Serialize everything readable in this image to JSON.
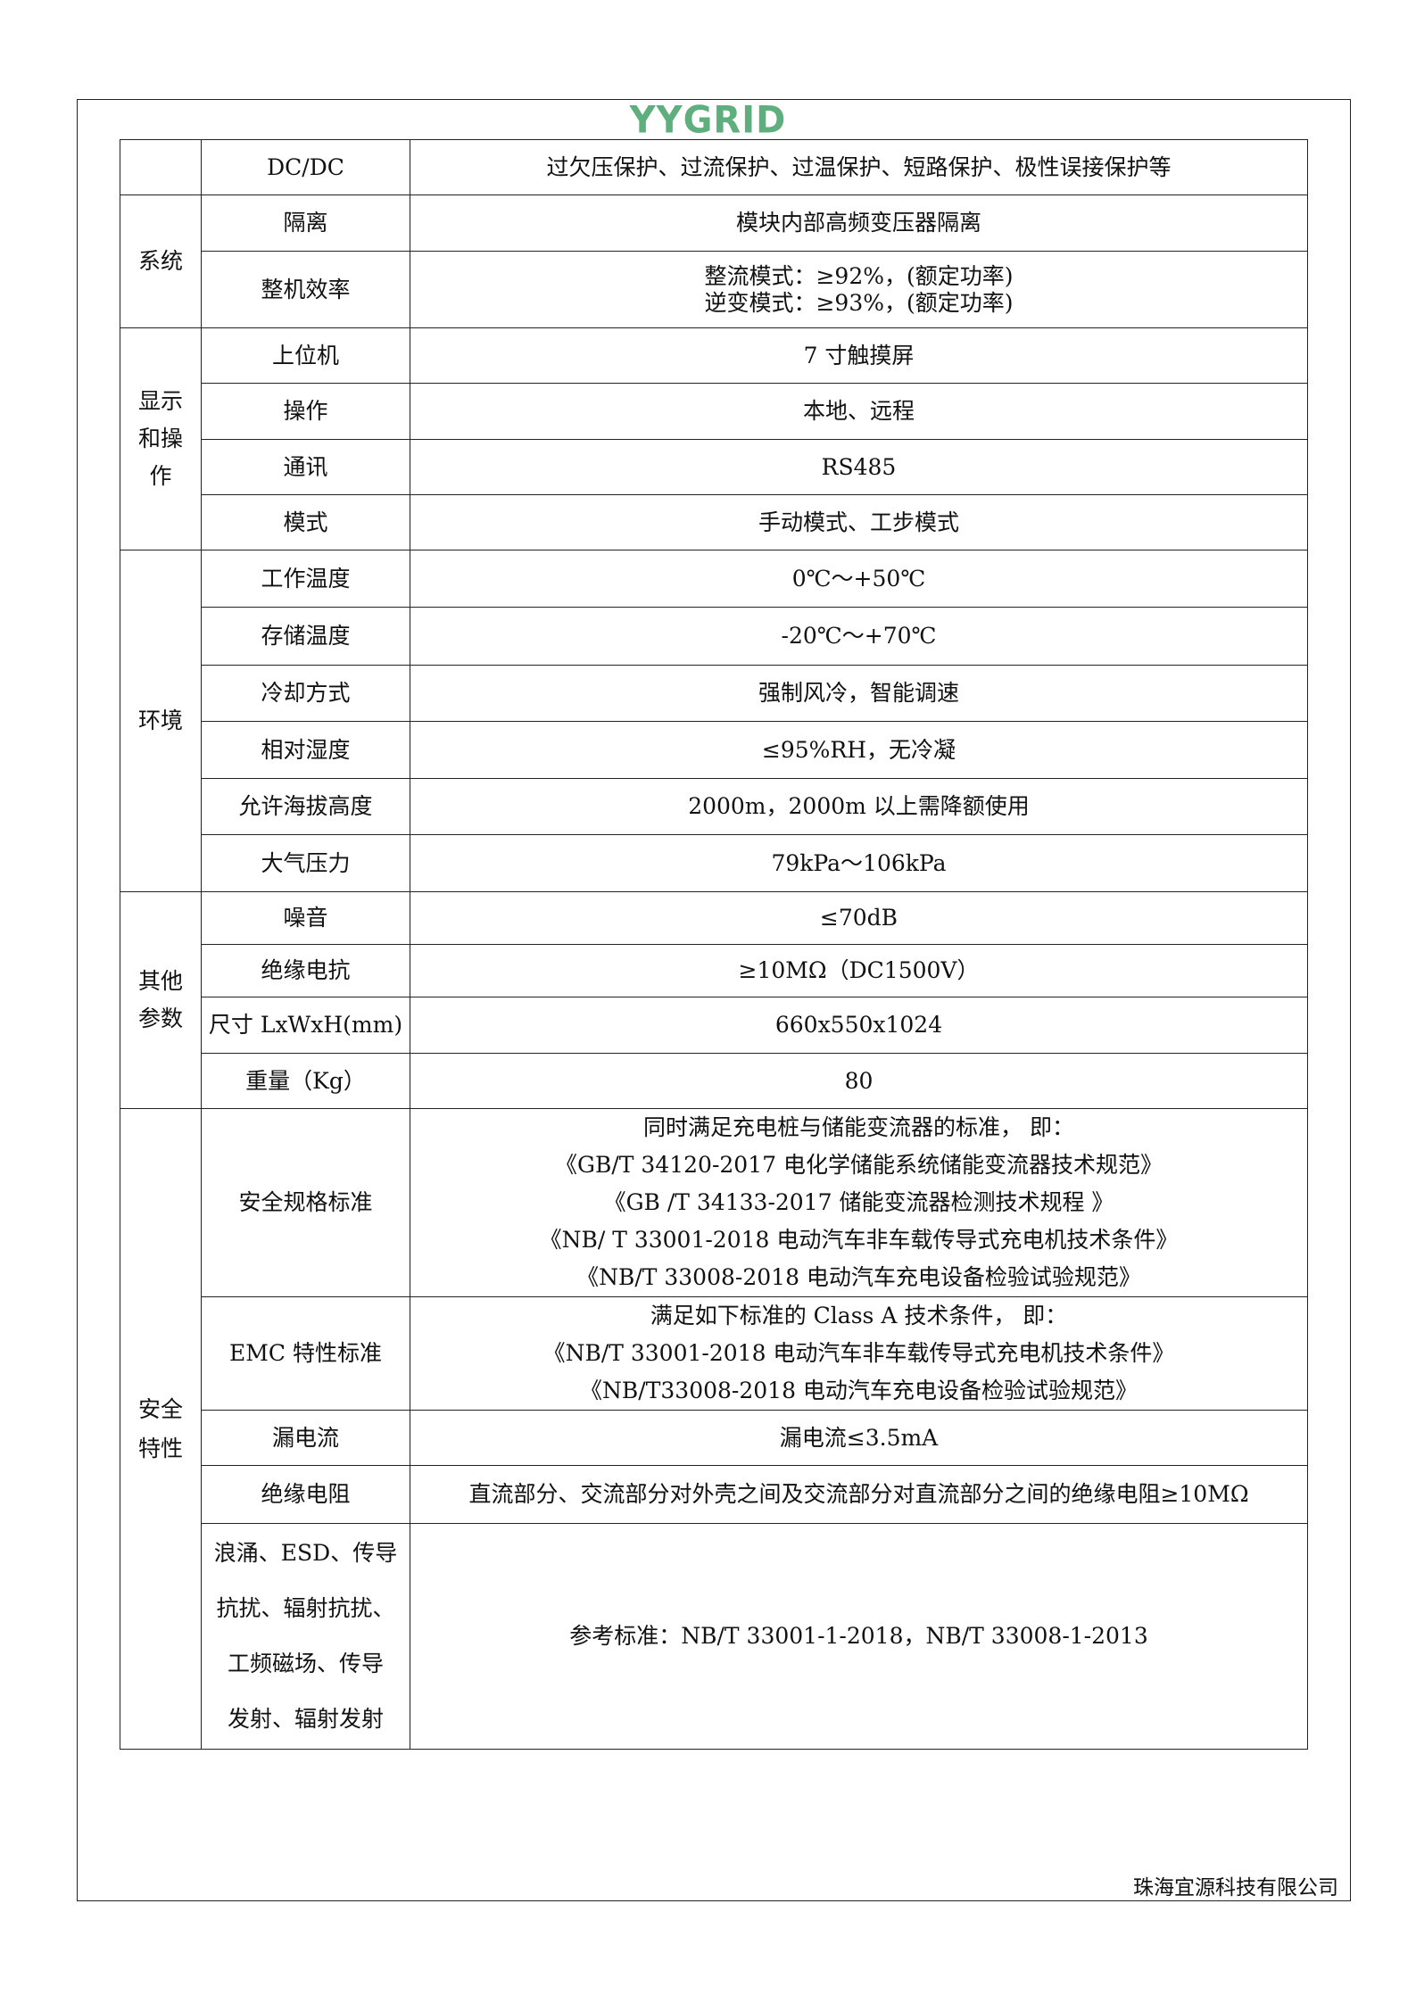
{
  "logo": "YYGRID",
  "brand_color": "#5fae7e",
  "rows": [
    {
      "group": "",
      "name": "DC/DC",
      "value": [
        "过欠压保护、过流保护、过温保护、短路保护、极性误接保护等"
      ]
    },
    {
      "group": "系统",
      "name": "隔离",
      "value": [
        "模块内部高频变压器隔离"
      ]
    },
    {
      "group": "",
      "name": "整机效率",
      "value": [
        "整流模式：≥92%，(额定功率)",
        "逆变模式：≥93%，(额定功率)"
      ]
    },
    {
      "group": "显示和操作",
      "name": "上位机",
      "value": [
        "7 寸触摸屏"
      ]
    },
    {
      "group": "",
      "name": "操作",
      "value": [
        "本地、远程"
      ]
    },
    {
      "group": "",
      "name": "通讯",
      "value": [
        "RS485"
      ]
    },
    {
      "group": "",
      "name": "模式",
      "value": [
        "手动模式、工步模式"
      ]
    },
    {
      "group": "环境",
      "name": "工作温度",
      "value": [
        "0℃～+50℃"
      ]
    },
    {
      "group": "",
      "name": "存储温度",
      "value": [
        "-20℃～+70℃"
      ]
    },
    {
      "group": "",
      "name": "冷却方式",
      "value": [
        "强制风冷，智能调速"
      ]
    },
    {
      "group": "",
      "name": "相对湿度",
      "value": [
        "≤95%RH，无冷凝"
      ]
    },
    {
      "group": "",
      "name": "允许海拔高度",
      "value": [
        "2000m，2000m 以上需降额使用"
      ]
    },
    {
      "group": "",
      "name": "大气压力",
      "value": [
        "79kPa～106kPa"
      ]
    },
    {
      "group": "其他参数",
      "name": "噪音",
      "value": [
        "≤70dB"
      ]
    },
    {
      "group": "",
      "name": "绝缘电抗",
      "value": [
        "≥10MΩ（DC1500V）"
      ]
    },
    {
      "group": "",
      "name": "尺寸 LxWxH(mm)",
      "value": [
        "660x550x1024"
      ]
    },
    {
      "group": "",
      "name": "重量（Kg）",
      "value": [
        "80"
      ]
    },
    {
      "group": "安全特性",
      "name": "安全规格标准",
      "value": [
        "同时满足充电桩与储能变流器的标准， 即：",
        "《GB/T 34120-2017 电化学储能系统储能变流器技术规范》",
        "《GB /T 34133-2017 储能变流器检测技术规程 》",
        "《NB/ T 33001-2018 电动汽车非车载传导式充电机技术条件》",
        "《NB/T 33008-2018 电动汽车充电设备检验试验规范》"
      ]
    },
    {
      "group": "",
      "name": "EMC 特性标准",
      "value": [
        "满足如下标准的 Class A 技术条件， 即：",
        "《NB/T 33001-2018 电动汽车非车载传导式充电机技术条件》",
        "《NB/T33008-2018 电动汽车充电设备检验试验规范》"
      ]
    },
    {
      "group": "",
      "name": "漏电流",
      "value": [
        "漏电流≤3.5mA"
      ]
    },
    {
      "group": "",
      "name": "绝缘电阻",
      "value": [
        "直流部分、交流部分对外壳之间及交流部分对直流部分之间的绝缘电阻≥10MΩ"
      ]
    },
    {
      "group": "",
      "name": [
        "浪涌、ESD、传导",
        "抗扰、辐射抗扰、",
        "工频磁场、传导",
        "发射、辐射发射"
      ],
      "value": [
        "参考标准：NB/T 33001-1-2018，NB/T 33008-1-2013"
      ]
    }
  ],
  "groups": {
    "system": [
      "系统"
    ],
    "display": [
      "显示",
      "和操",
      "作"
    ],
    "env": [
      "环境"
    ],
    "other": [
      "其他",
      "参数"
    ],
    "safety": [
      "安全",
      "特性"
    ]
  },
  "footer": "珠海宜源科技有限公司"
}
